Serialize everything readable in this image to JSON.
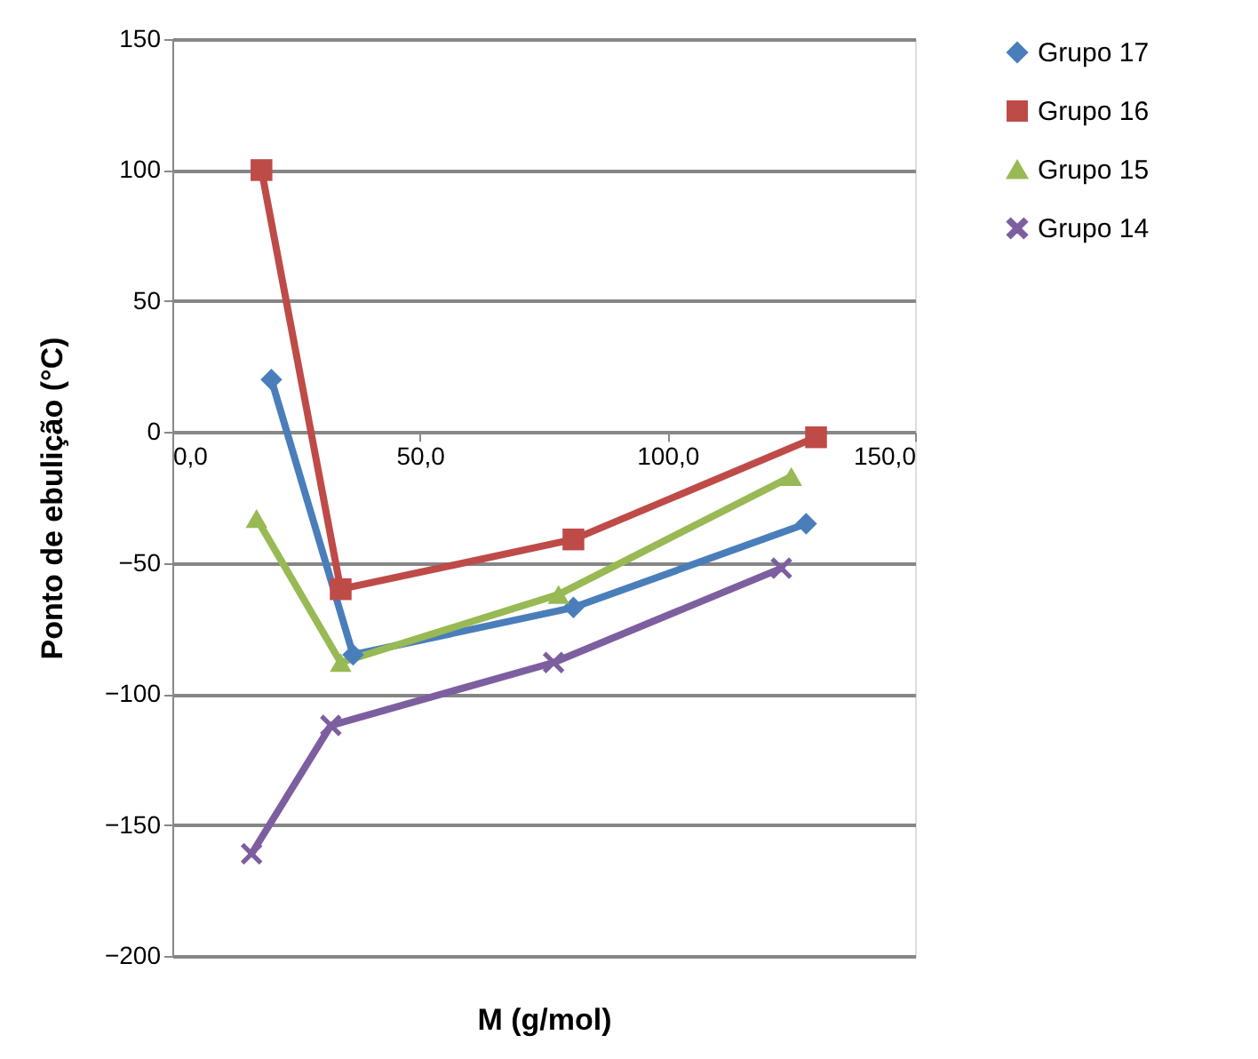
{
  "chart_data": {
    "type": "line",
    "xlabel": "M (g/mol)",
    "ylabel": "Ponto de ebulição (°C)",
    "xlim": [
      0,
      150
    ],
    "ylim": [
      -200,
      150
    ],
    "xticks": [
      {
        "value": 0,
        "label": "0,0"
      },
      {
        "value": 50,
        "label": "50,0"
      },
      {
        "value": 100,
        "label": "100,0"
      },
      {
        "value": 150,
        "label": "150,0"
      }
    ],
    "yticks": [
      -200,
      -150,
      -100,
      -50,
      0,
      50,
      100,
      150
    ],
    "grid": "y",
    "legend": "right",
    "series": [
      {
        "name": "Grupo 17",
        "color": "#4a7ebb",
        "marker": "diamond",
        "x": [
          20,
          36.5,
          81,
          128
        ],
        "values": [
          20,
          -85,
          -67,
          -35
        ]
      },
      {
        "name": "Grupo 16",
        "color": "#be4b48",
        "marker": "square",
        "x": [
          18,
          34,
          81,
          130
        ],
        "values": [
          100,
          -60,
          -41,
          -2
        ]
      },
      {
        "name": "Grupo 15",
        "color": "#98b954",
        "marker": "triangle",
        "x": [
          17,
          34,
          78,
          125
        ],
        "values": [
          -33,
          -88,
          -62,
          -17
        ]
      },
      {
        "name": "Grupo 14",
        "color": "#7d5fa0",
        "marker": "cross",
        "x": [
          16,
          32,
          77,
          123
        ],
        "values": [
          -161,
          -112,
          -88,
          -52
        ]
      }
    ]
  }
}
